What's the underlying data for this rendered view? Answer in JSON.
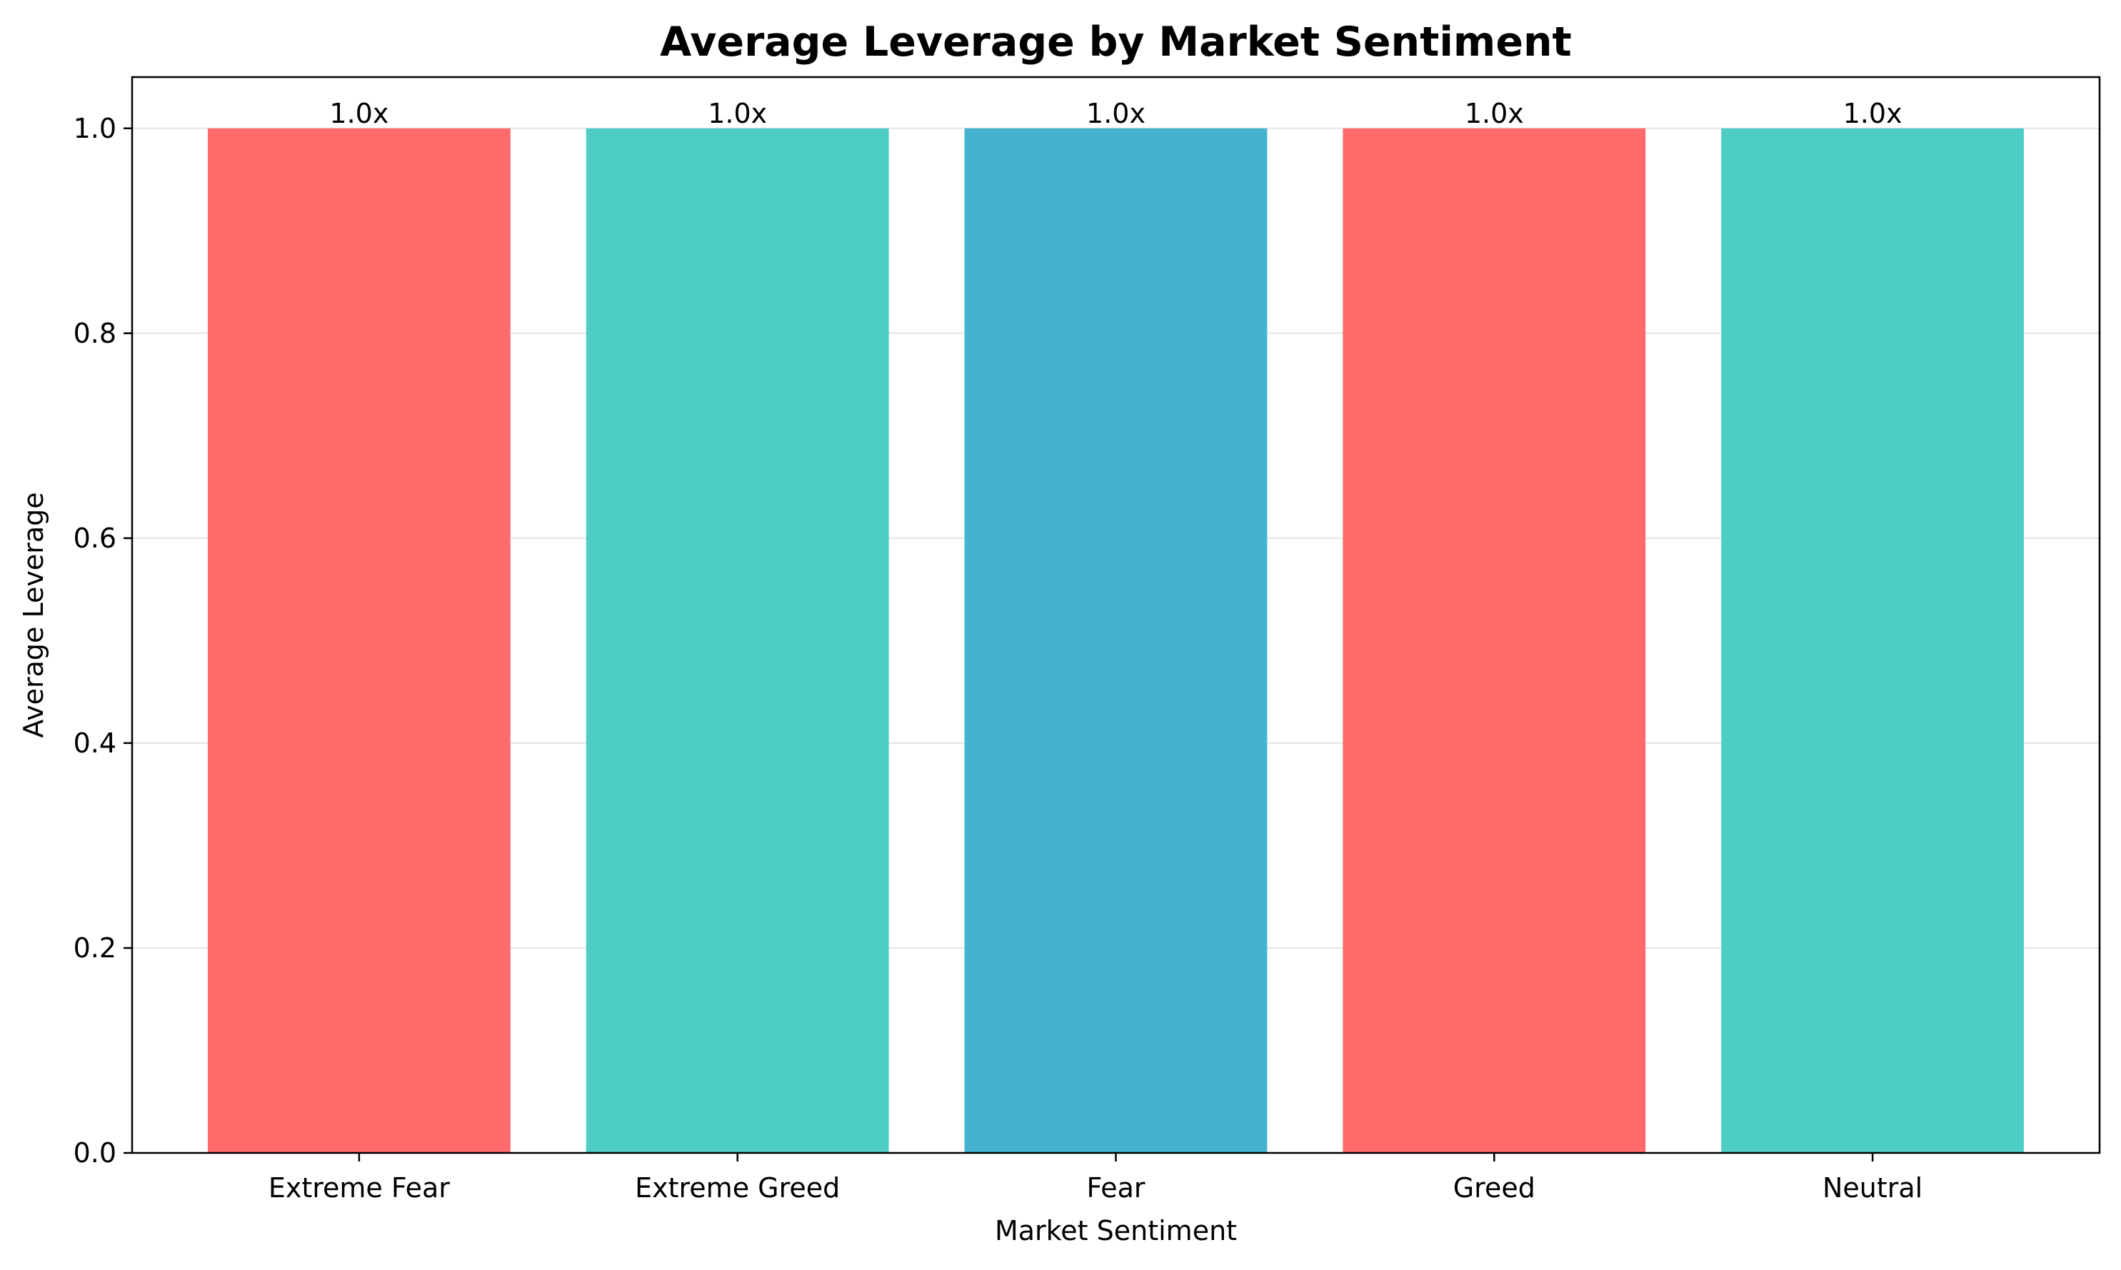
{
  "chart_data": {
    "type": "bar",
    "title": "Average Leverage by Market Sentiment",
    "xlabel": "Market Sentiment",
    "ylabel": "Average Leverage",
    "categories": [
      "Extreme Fear",
      "Extreme Greed",
      "Fear",
      "Greed",
      "Neutral"
    ],
    "values": [
      1.0,
      1.0,
      1.0,
      1.0,
      1.0
    ],
    "data_labels": [
      "1.0x",
      "1.0x",
      "1.0x",
      "1.0x",
      "1.0x"
    ],
    "colors": [
      "#ff6b6b",
      "#4ecdc4",
      "#45b3d0",
      "#ff6b6b",
      "#4ecdc4"
    ],
    "ylim": [
      0,
      1.05
    ],
    "yticks": [
      0.0,
      0.2,
      0.4,
      0.6,
      0.8,
      1.0
    ],
    "ytick_labels": [
      "0.0",
      "0.2",
      "0.4",
      "0.6",
      "0.8",
      "1.0"
    ],
    "grid": "y",
    "legend": "none"
  }
}
